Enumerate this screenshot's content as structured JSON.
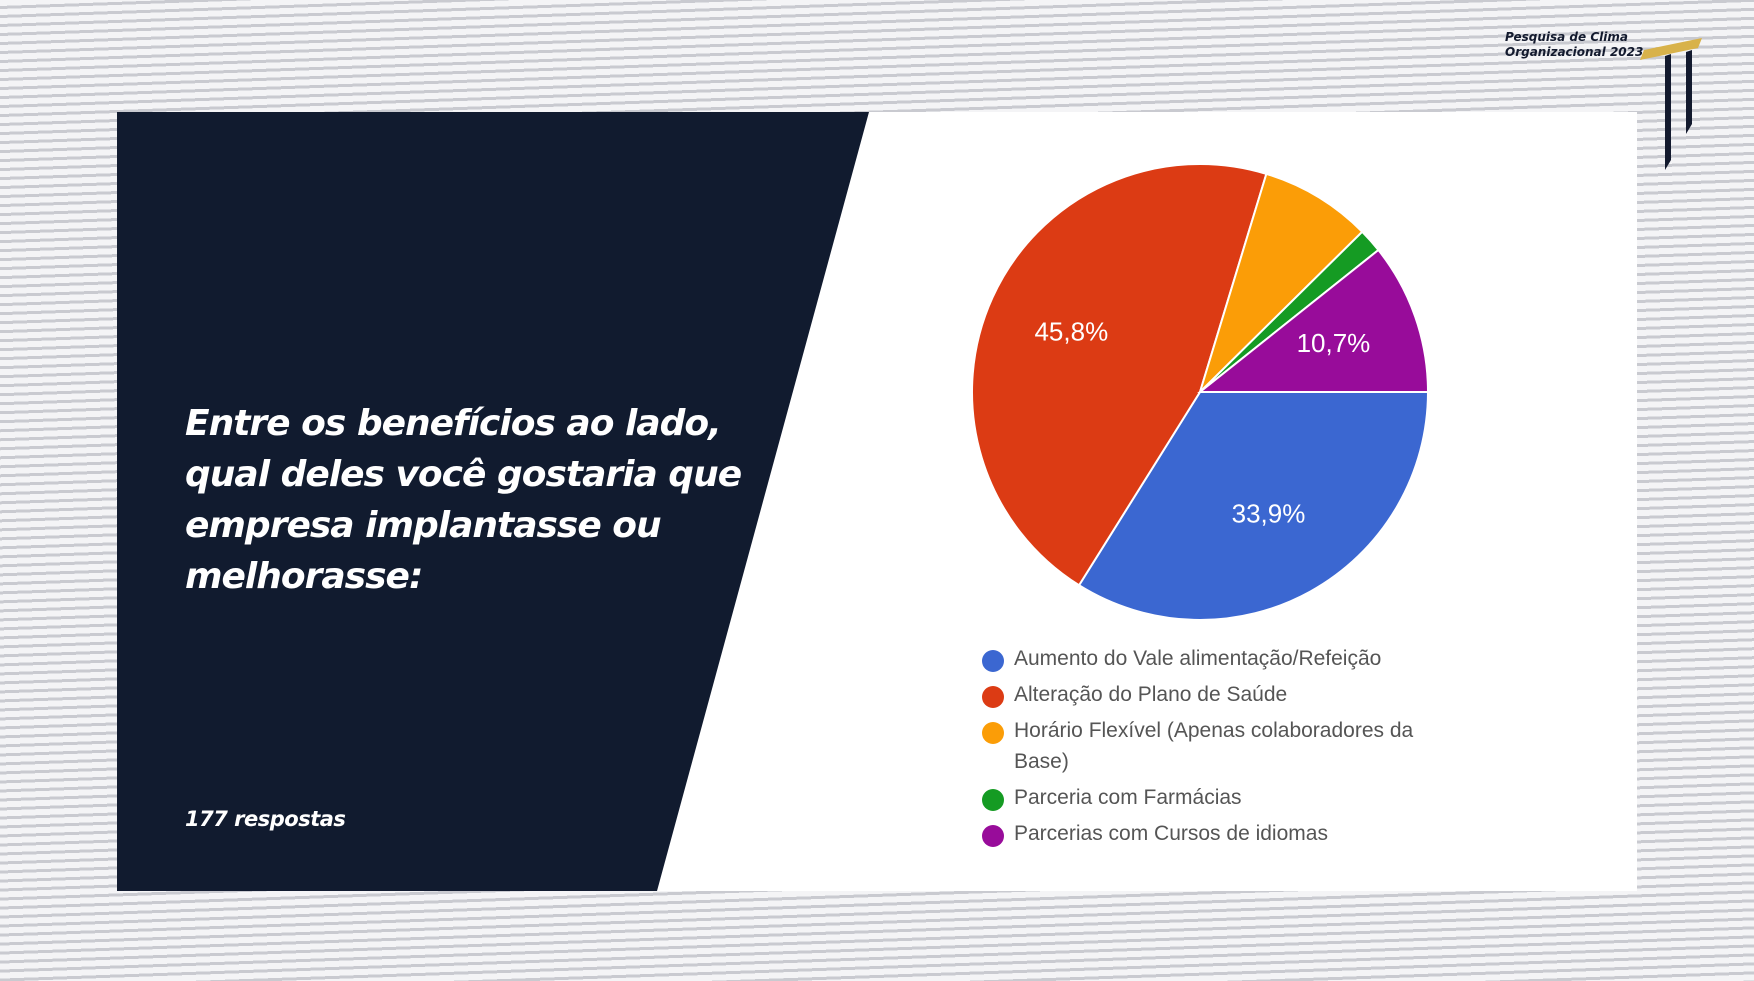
{
  "header": {
    "brand_line1": "Pesquisa de Clima",
    "brand_line2": "Organizacional 2023"
  },
  "slide": {
    "question": "Entre os benefícios ao lado, qual deles você gostaria que empresa implantasse ou melhorasse:",
    "responses": "177 respostas"
  },
  "colors": {
    "panel": "#111b2f",
    "accent_gold": "#d8b24a"
  },
  "chart_data": {
    "type": "pie",
    "slices": [
      {
        "label": "Aumento do Vale alimentação/Refeição",
        "value": 33.9,
        "data_label": "33,9%",
        "color": "#3b67d1"
      },
      {
        "label": "Alteração do Plano de Saúde",
        "value": 45.8,
        "data_label": "45,8%",
        "color": "#dc3b14"
      },
      {
        "label": "Horário Flexível (Apenas colaboradores da Base)",
        "value": 7.9,
        "data_label": "",
        "color": "#fb9d07"
      },
      {
        "label": "Parceria com Farmácias",
        "value": 1.7,
        "data_label": "",
        "color": "#159b23"
      },
      {
        "label": "Parcerias com Cursos de idiomas",
        "value": 10.7,
        "data_label": "10,7%",
        "color": "#980c9a"
      }
    ],
    "legend_position": "bottom"
  }
}
